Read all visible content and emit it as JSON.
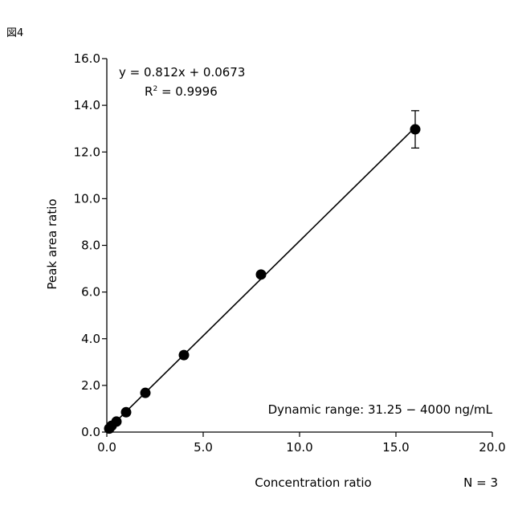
{
  "figure_label": "図4",
  "chart_data": {
    "type": "scatter",
    "xlabel": "Concentration ratio",
    "ylabel": "Peak area ratio",
    "xlim": [
      0,
      20
    ],
    "ylim": [
      0,
      16
    ],
    "xticks": [
      0,
      5,
      10,
      15,
      20
    ],
    "xtick_labels": [
      "0.0",
      "5.0",
      "10.0",
      "15.0",
      "20.0"
    ],
    "yticks": [
      0,
      2,
      4,
      6,
      8,
      10,
      12,
      14,
      16
    ],
    "ytick_labels": [
      "0.0",
      "2.0",
      "4.0",
      "6.0",
      "8.0",
      "10.0",
      "12.0",
      "14.0",
      "16.0"
    ],
    "grid": false,
    "series": [
      {
        "points": [
          {
            "x": 0.125,
            "y": 0.15,
            "err": 0
          },
          {
            "x": 0.25,
            "y": 0.27,
            "err": 0
          },
          {
            "x": 0.5,
            "y": 0.45,
            "err": 0
          },
          {
            "x": 1,
            "y": 0.85,
            "err": 0
          },
          {
            "x": 2,
            "y": 1.68,
            "err": 0
          },
          {
            "x": 4,
            "y": 3.3,
            "err": 0
          },
          {
            "x": 8,
            "y": 6.75,
            "err": 0
          },
          {
            "x": 16,
            "y": 12.97,
            "err": 0.8
          }
        ]
      }
    ],
    "fit": {
      "slope": 0.812,
      "intercept": 0.0673,
      "x_range": [
        0,
        16
      ]
    },
    "annotations": {
      "equation": "y = 0.812x + 0.0673",
      "r2_prefix": "R",
      "r2_sup": "2",
      "r2_suffix": " = 0.9996",
      "dynamic_range": "Dynamic range: 31.25 − 4000 ng/mL",
      "n": "N = 3"
    }
  }
}
